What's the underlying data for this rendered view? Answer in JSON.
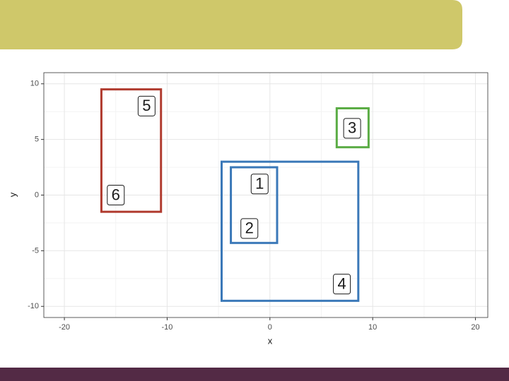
{
  "chart_data": {
    "type": "boxes",
    "x_label": "x",
    "y_label": "y",
    "xlim": [
      -22,
      21.2
    ],
    "ylim": [
      -11,
      11
    ],
    "xticks": [
      -20,
      -10,
      0,
      10,
      20
    ],
    "yticks": [
      -10,
      -5,
      0,
      5,
      10
    ],
    "grid": true,
    "points": [
      {
        "label": "1",
        "x": -1,
        "y": 1
      },
      {
        "label": "2",
        "x": -2,
        "y": -3
      },
      {
        "label": "3",
        "x": 8,
        "y": 6
      },
      {
        "label": "4",
        "x": 7,
        "y": -8
      },
      {
        "label": "5",
        "x": -12,
        "y": 8
      },
      {
        "label": "6",
        "x": -15,
        "y": 0
      }
    ],
    "rects": [
      {
        "xmin": -16.4,
        "xmax": -10.6,
        "ymin": -1.5,
        "ymax": 9.5,
        "color": "#b03a2e"
      },
      {
        "xmin": -3.8,
        "xmax": 0.7,
        "ymin": -4.3,
        "ymax": 2.5,
        "color": "#3a78b8"
      },
      {
        "xmin": -4.7,
        "xmax": 8.6,
        "ymin": -9.5,
        "ymax": 3.0,
        "color": "#3a78b8"
      },
      {
        "xmin": 6.5,
        "xmax": 9.6,
        "ymin": 4.3,
        "ymax": 7.8,
        "color": "#5aac44"
      }
    ]
  }
}
